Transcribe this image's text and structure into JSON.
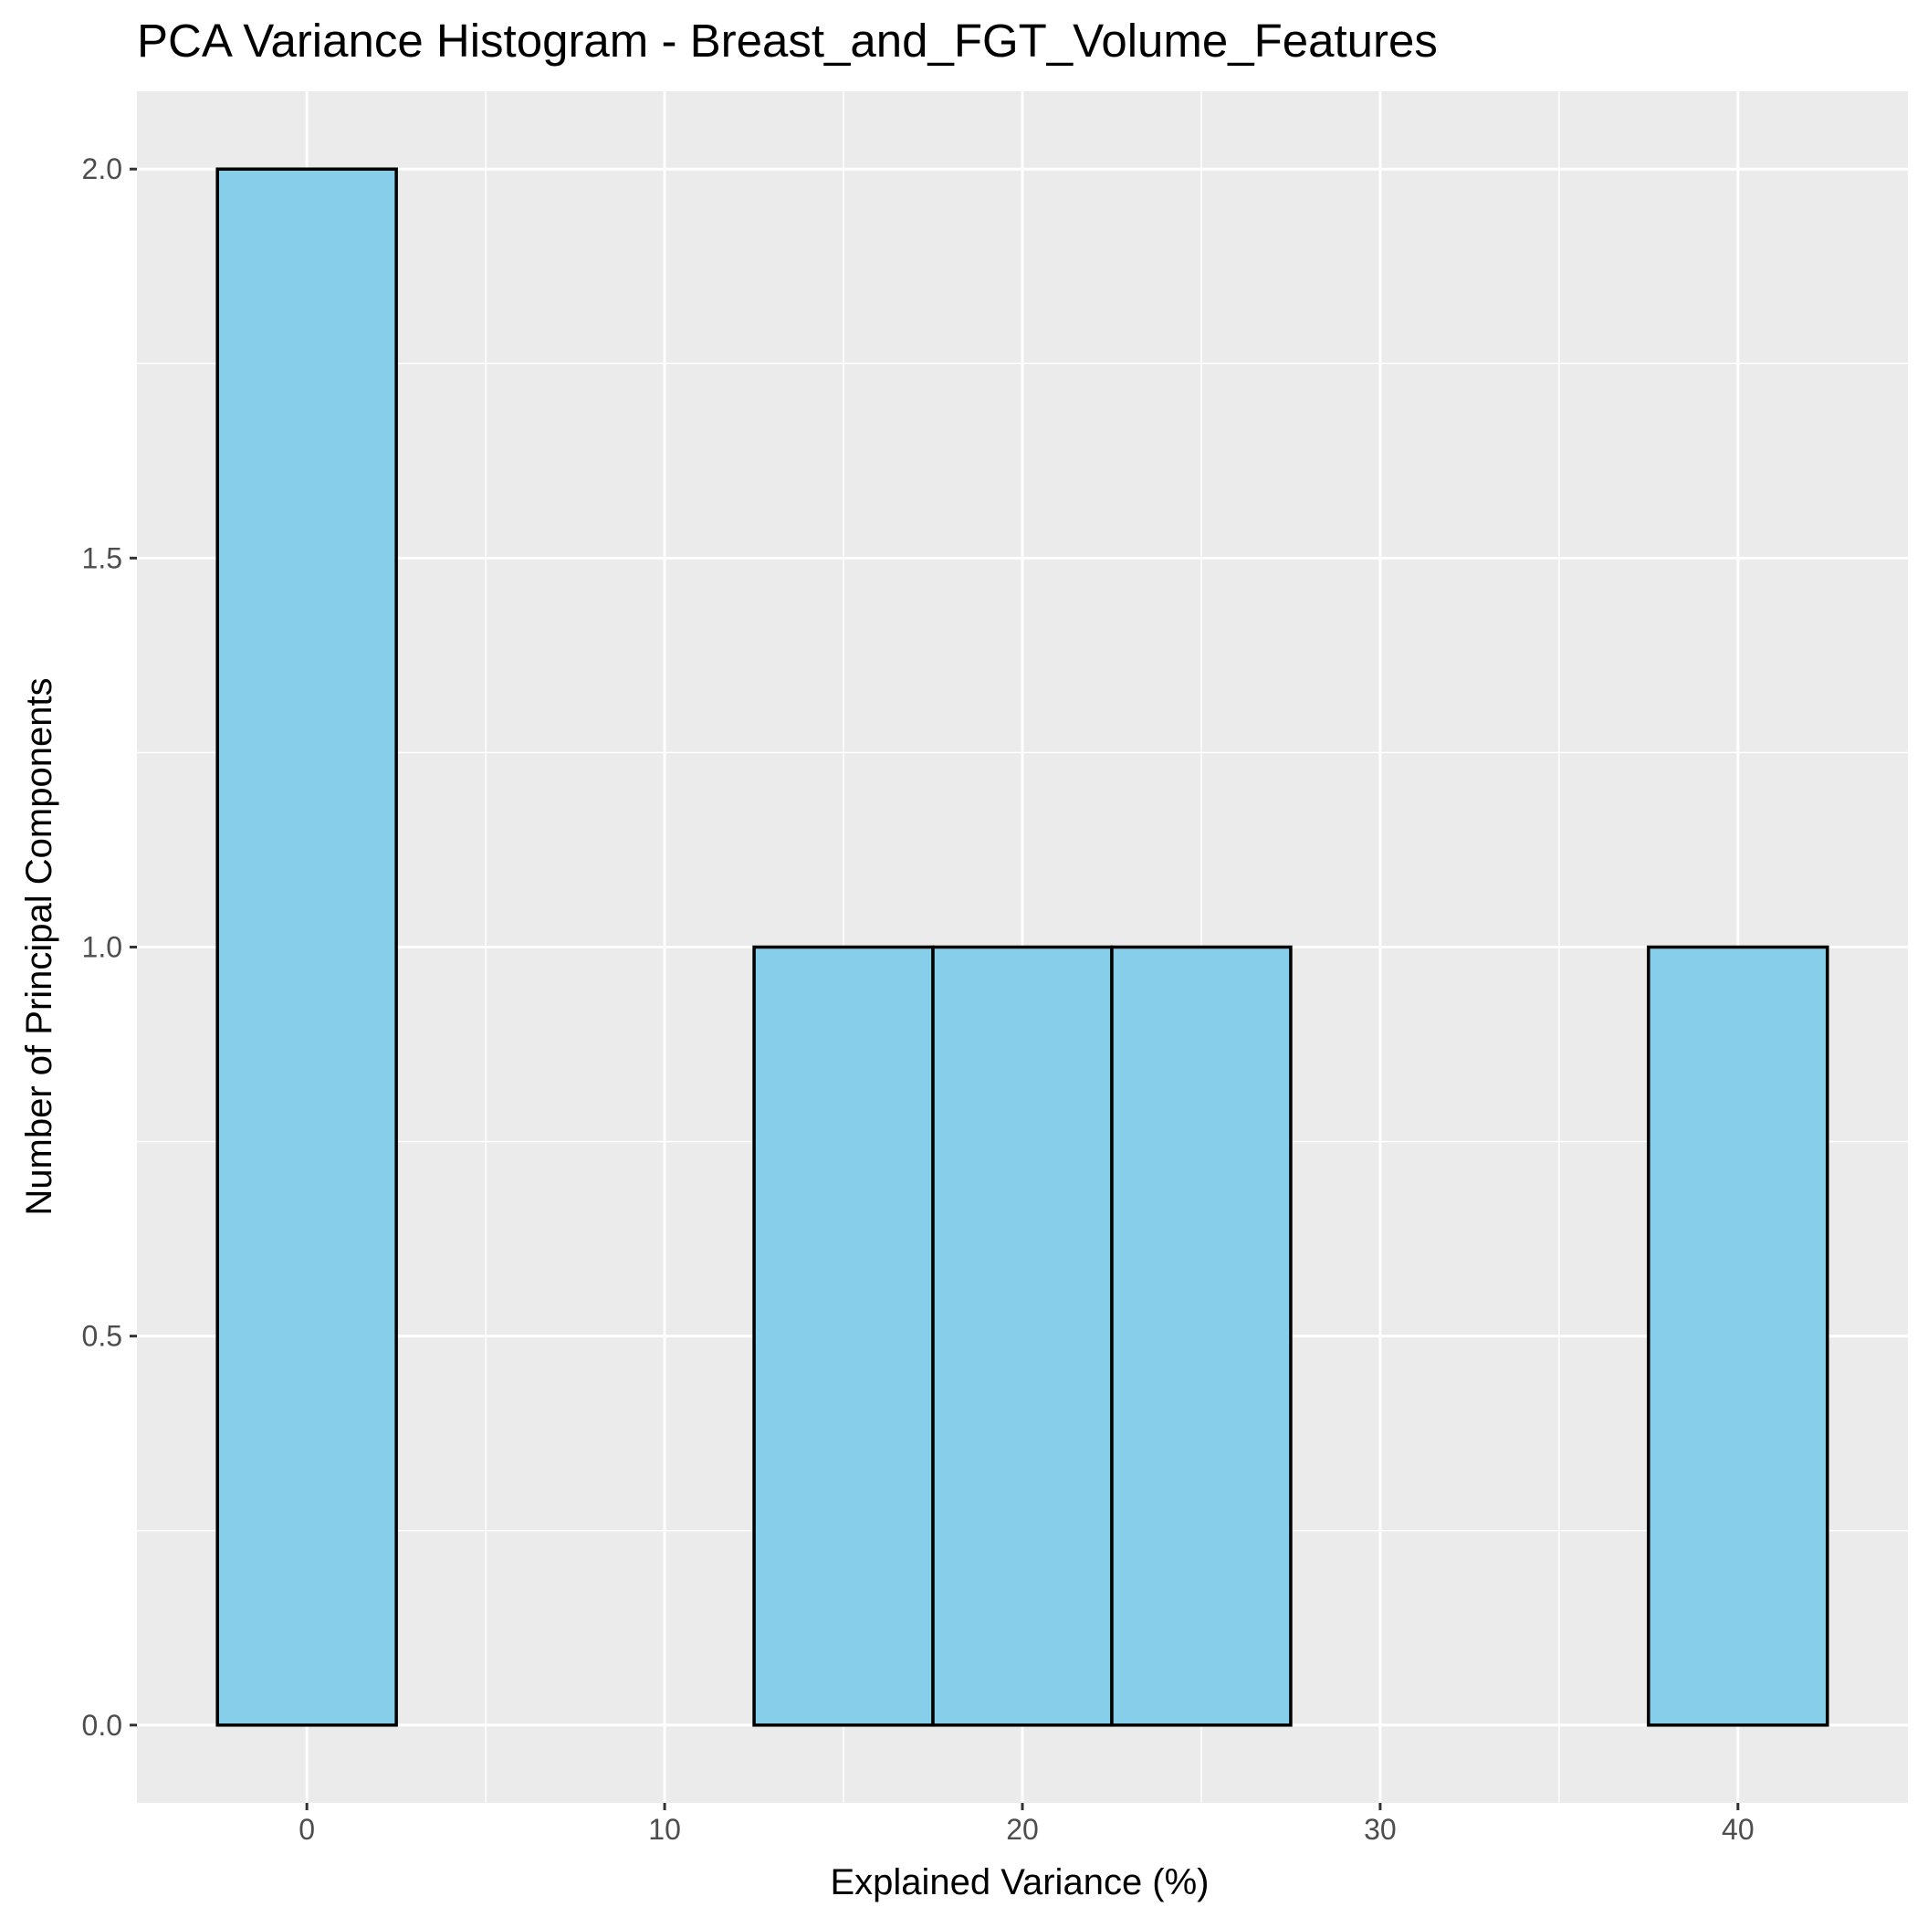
{
  "chart_data": {
    "type": "bar",
    "title": "PCA Variance Histogram - Breast_and_FGT_Volume_Features",
    "xlabel": "Explained Variance (%)",
    "ylabel": "Number of Principal Components",
    "bins": [
      {
        "x_start": -2.5,
        "x_end": 2.5,
        "count": 2
      },
      {
        "x_start": 2.5,
        "x_end": 7.5,
        "count": 0
      },
      {
        "x_start": 7.5,
        "x_end": 12.5,
        "count": 0
      },
      {
        "x_start": 12.5,
        "x_end": 17.5,
        "count": 1
      },
      {
        "x_start": 17.5,
        "x_end": 22.5,
        "count": 1
      },
      {
        "x_start": 22.5,
        "x_end": 27.5,
        "count": 1
      },
      {
        "x_start": 27.5,
        "x_end": 32.5,
        "count": 0
      },
      {
        "x_start": 32.5,
        "x_end": 37.5,
        "count": 0
      },
      {
        "x_start": 37.5,
        "x_end": 42.5,
        "count": 1
      }
    ],
    "xlim": [
      -4.75,
      44.75
    ],
    "ylim": [
      -0.1,
      2.1
    ],
    "xticks": [
      0,
      10,
      20,
      30,
      40
    ],
    "xtick_labels": [
      "0",
      "10",
      "20",
      "30",
      "40"
    ],
    "yticks": [
      0,
      0.5,
      1,
      1.5,
      2
    ],
    "ytick_labels": [
      "0.0",
      "0.5",
      "1.0",
      "1.5",
      "2.0"
    ],
    "grid": true,
    "colors": {
      "panel_background": "#ebebeb",
      "grid": "#ffffff",
      "bar_fill": "#87ceeb",
      "bar_outline": "#000000",
      "tick_mark": "#333333"
    }
  }
}
